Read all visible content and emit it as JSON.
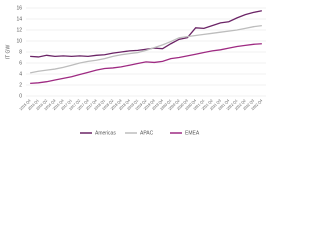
{
  "chart_data": {
    "type": "line",
    "y_label": "IT GW",
    "categories": [
      "2015 Q4",
      "2016 Q1",
      "2016 Q2",
      "2016 Q3",
      "2016 Q4",
      "2017 Q1",
      "2017 Q2",
      "2017 Q3",
      "2017 Q4",
      "2018 Q1",
      "2018 Q2",
      "2018 Q3",
      "2018 Q4",
      "2019 Q1",
      "2019 Q2",
      "2019 Q3",
      "2019 Q4",
      "2020 Q1",
      "2020 Q2",
      "2020 Q3",
      "2020 Q4",
      "2021 Q1",
      "2021 Q2",
      "2021 Q3",
      "2021 Q4",
      "2022 Q1",
      "2022 Q2",
      "2022 Q3",
      "2022 Q4"
    ],
    "series": [
      {
        "name": "Americas",
        "color": "#6b2466",
        "values": [
          7.2,
          7.1,
          7.4,
          7.2,
          7.3,
          7.2,
          7.3,
          7.2,
          7.4,
          7.5,
          7.8,
          8.0,
          8.2,
          8.3,
          8.5,
          8.7,
          8.6,
          9.5,
          10.3,
          10.6,
          12.4,
          12.3,
          12.8,
          13.3,
          13.5,
          14.2,
          14.8,
          15.2,
          15.5
        ]
      },
      {
        "name": "APAC",
        "color": "#bdbdbd",
        "values": [
          4.2,
          4.5,
          4.7,
          4.9,
          5.2,
          5.6,
          6.0,
          6.3,
          6.5,
          6.8,
          7.2,
          7.5,
          7.7,
          7.9,
          8.3,
          8.8,
          9.3,
          9.9,
          10.6,
          10.8,
          11.0,
          11.2,
          11.4,
          11.6,
          11.8,
          12.0,
          12.3,
          12.6,
          12.8
        ]
      },
      {
        "name": "EMEA",
        "color": "#9e2a82",
        "values": [
          2.3,
          2.4,
          2.6,
          2.9,
          3.2,
          3.5,
          3.9,
          4.3,
          4.7,
          5.0,
          5.1,
          5.3,
          5.6,
          5.9,
          6.2,
          6.1,
          6.3,
          6.8,
          7.0,
          7.3,
          7.6,
          7.9,
          8.2,
          8.4,
          8.7,
          9.0,
          9.2,
          9.4,
          9.5
        ]
      }
    ],
    "ylim": [
      0,
      16
    ],
    "yticks": [
      0,
      2,
      4,
      6,
      8,
      10,
      12,
      14,
      16
    ],
    "grid": true
  }
}
